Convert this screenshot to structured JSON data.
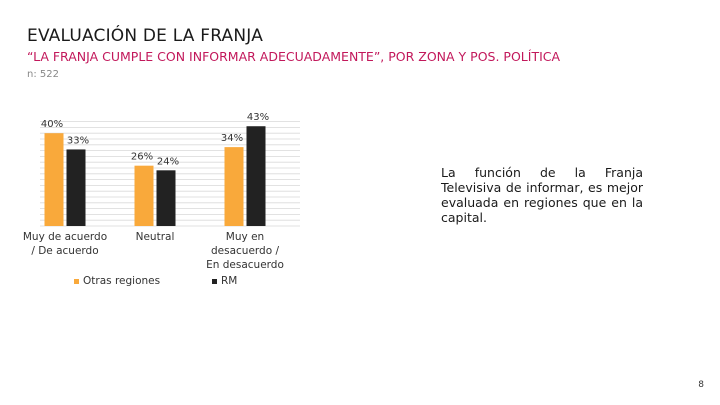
{
  "slide": {
    "title": "EVALUACIÓN DE LA FRANJA",
    "subtitle": "“LA FRANJA CUMPLE CON INFORMAR ADECUADAMENTE”, POR ZONA Y POS. POLÍTICA",
    "sample": "n: 522",
    "note": "La función de la Franja Televisiva de informar, es mejor evaluada en regiones que en la capital.",
    "page_number": "8"
  },
  "chart_data": {
    "type": "bar",
    "categories": [
      "Muy de acuerdo / De acuerdo",
      "Neutral",
      "Muy en desacuerdo / En desacuerdo"
    ],
    "series": [
      {
        "name": "Otras regiones",
        "color": "#f9a93b",
        "values": [
          40,
          26,
          34
        ],
        "labels": [
          "40%",
          "26%",
          "34%"
        ]
      },
      {
        "name": "RM",
        "color": "#222222",
        "values": [
          33,
          24,
          43
        ],
        "labels": [
          "33%",
          "24%",
          "43%"
        ]
      }
    ],
    "ylim": [
      0,
      50
    ],
    "grid": true,
    "legend": "bottom"
  }
}
